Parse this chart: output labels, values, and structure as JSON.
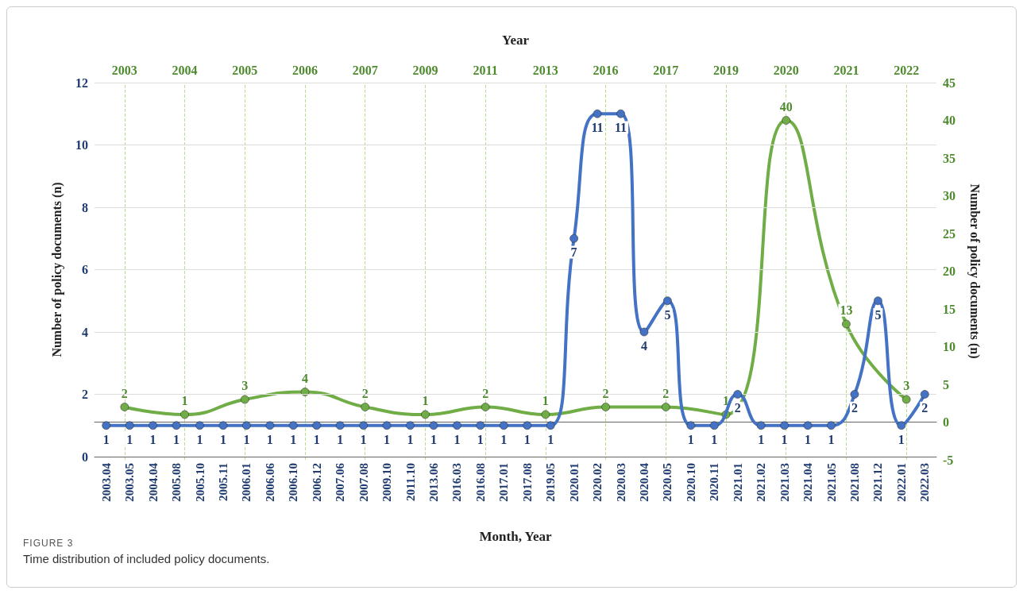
{
  "chart_data": [
    {
      "type": "line",
      "xlabel": "Month, Year",
      "ylabel": "Number of policy documents (n)",
      "categories": [
        "2003.04",
        "2003.05",
        "2004.04",
        "2005.08",
        "2005.10",
        "2005.11",
        "2006.01",
        "2006.06",
        "2006.10",
        "2006.12",
        "2007.06",
        "2007.08",
        "2009.10",
        "2011.10",
        "2013.06",
        "2016.03",
        "2016.08",
        "2017.01",
        "2017.08",
        "2019.05",
        "2020.01",
        "2020.02",
        "2020.03",
        "2020.04",
        "2020.05",
        "2020.10",
        "2020.11",
        "2021.01",
        "2021.02",
        "2021.03",
        "2021.04",
        "2021.05",
        "2021.08",
        "2021.12",
        "2022.01",
        "2022.03"
      ],
      "series": [
        {
          "color": "#4472c4",
          "values": [
            1,
            1,
            1,
            1,
            1,
            1,
            1,
            1,
            1,
            1,
            1,
            1,
            1,
            1,
            1,
            1,
            1,
            1,
            1,
            1,
            7,
            11,
            11,
            4,
            5,
            1,
            1,
            2,
            1,
            1,
            1,
            1,
            2,
            5,
            1,
            2
          ]
        }
      ],
      "ylim": [
        0,
        12
      ],
      "yticks": [
        0,
        2,
        4,
        6,
        8,
        10,
        12
      ],
      "grid": "y",
      "marker": "circle",
      "line_style": "solid",
      "data_labels": true,
      "annotations": [
        "FIGURE 3",
        "Time distribution of included policy documents."
      ]
    },
    {
      "type": "line",
      "xlabel": "Year",
      "ylabel": "Number of policy documents (n)",
      "categories": [
        "2003",
        "2004",
        "2005",
        "2006",
        "2007",
        "2009",
        "2011",
        "2013",
        "2016",
        "2017",
        "2019",
        "2020",
        "2021",
        "2022"
      ],
      "series": [
        {
          "color": "#70ad47",
          "values": [
            2,
            1,
            3,
            4,
            2,
            1,
            2,
            1,
            2,
            2,
            1,
            40,
            13,
            3
          ]
        }
      ],
      "ylim": [
        -5,
        45
      ],
      "yticks": [
        -5,
        0,
        5,
        10,
        15,
        20,
        25,
        30,
        35,
        40,
        45
      ],
      "grid": "x",
      "marker": "circle",
      "line_style": "solid",
      "data_labels": true
    }
  ]
}
